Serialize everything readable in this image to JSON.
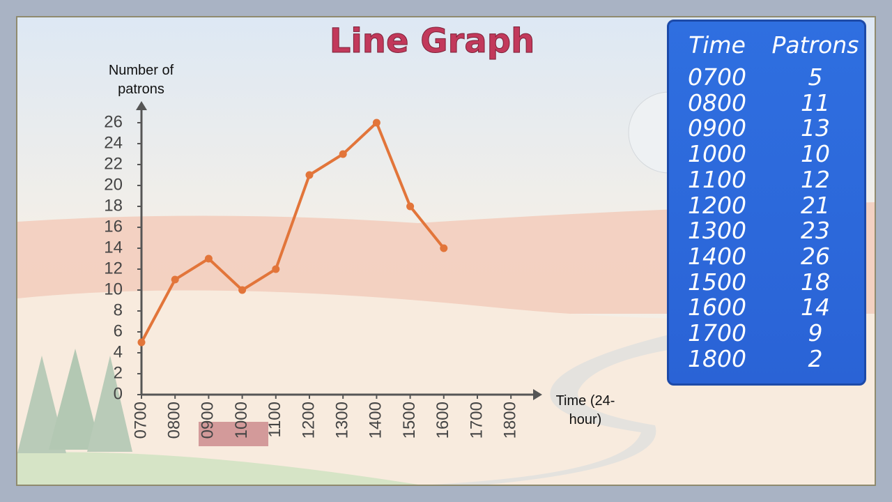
{
  "chart_data": {
    "type": "line",
    "title": "Line Graph",
    "y_label": "Number of patrons",
    "x_label": "Time (24-hour)",
    "categories": [
      "0700",
      "0800",
      "0900",
      "1000",
      "1100",
      "1200",
      "1300",
      "1400",
      "1500",
      "1600",
      "1700",
      "1800"
    ],
    "series": [
      {
        "name": "Patrons",
        "color": "#e2753a",
        "values": [
          5,
          11,
          13,
          10,
          12,
          21,
          23,
          26,
          18,
          14,
          null,
          null
        ]
      }
    ],
    "ylim": [
      0,
      26
    ],
    "yticks": [
      0,
      2,
      4,
      6,
      8,
      10,
      12,
      14,
      16,
      18,
      20,
      22,
      24,
      26
    ]
  },
  "table": {
    "headers": [
      "Time",
      "Patrons"
    ],
    "rows": [
      [
        "0700",
        5
      ],
      [
        "0800",
        11
      ],
      [
        "0900",
        13
      ],
      [
        "1000",
        10
      ],
      [
        "1100",
        12
      ],
      [
        "1200",
        21
      ],
      [
        "1300",
        23
      ],
      [
        "1400",
        26
      ],
      [
        "1500",
        18
      ],
      [
        "1600",
        14
      ],
      [
        "1700",
        9
      ],
      [
        "1800",
        2
      ]
    ]
  }
}
